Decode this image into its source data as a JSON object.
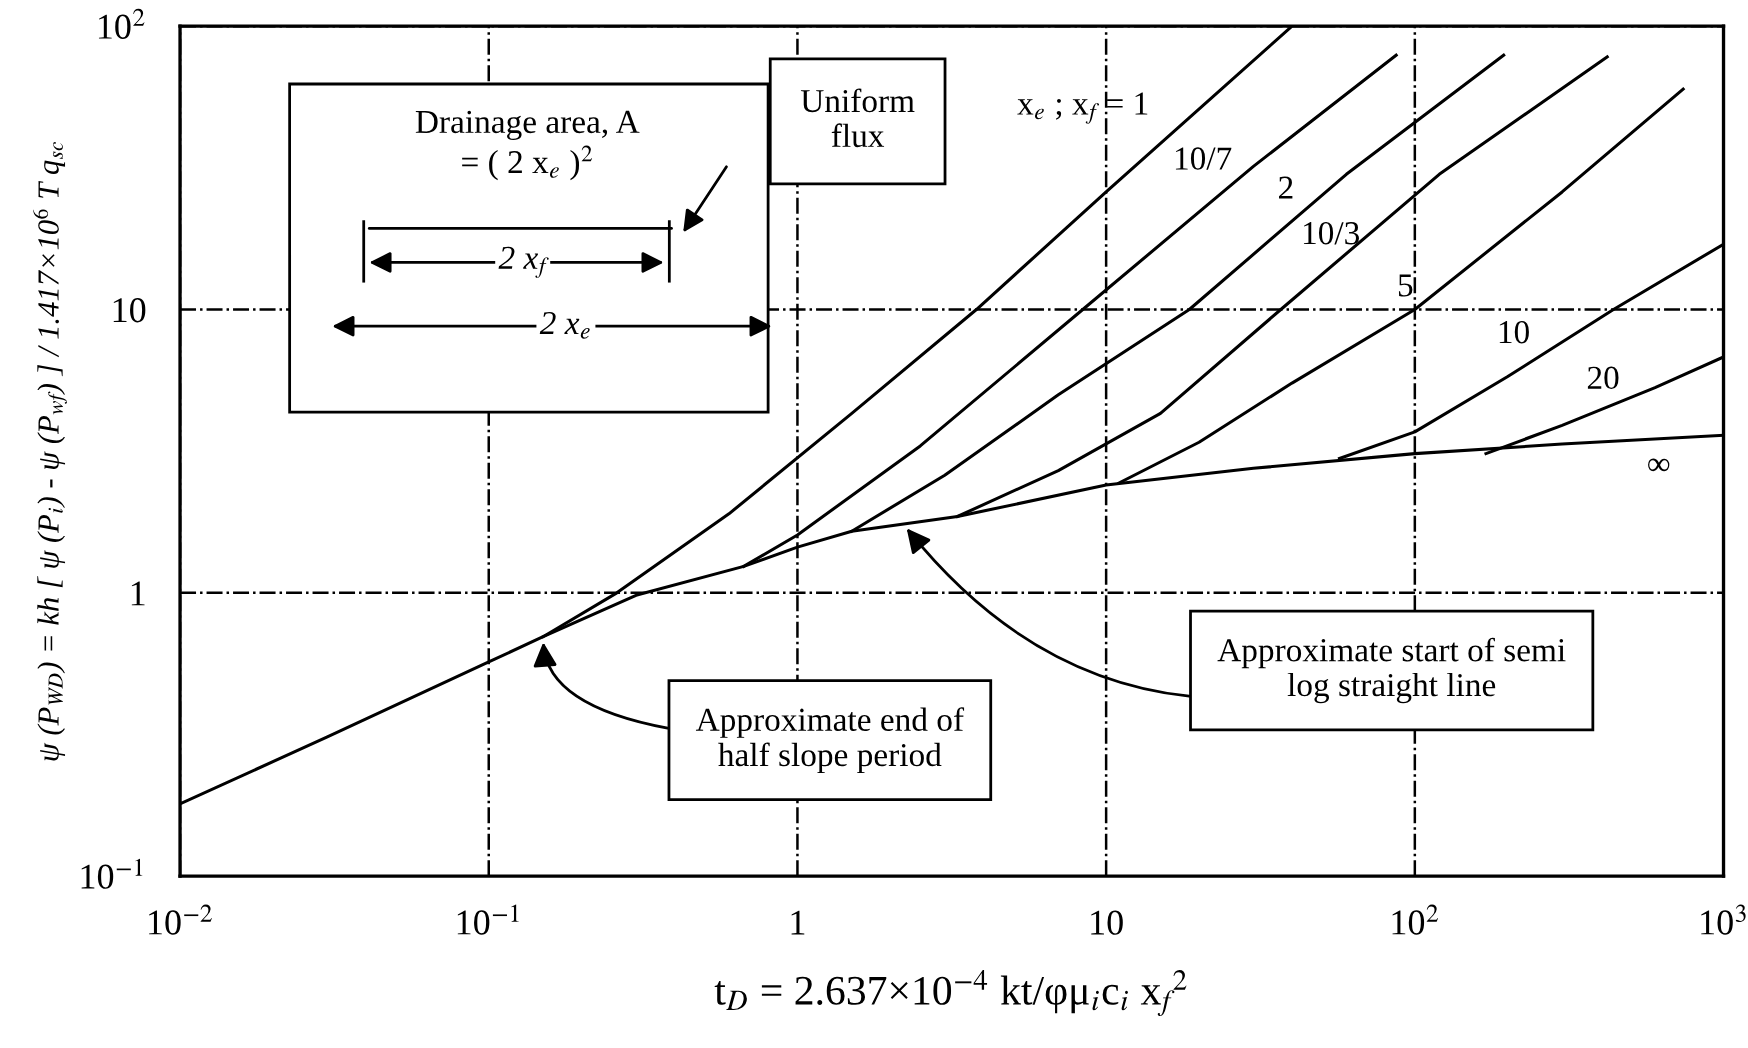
{
  "chart_data": {
    "type": "line",
    "xlabel": "t$_{D}$ = 2.637×10$^{−4}$ kt/φμ$_{i}$c$_{i}$ x$_{f}$$^{2}$",
    "ylabel": "ψ (P$_{WD}$) = kh [ ψ (P$_{i}$) - ψ (P$_{wf}$) ] / 1.417×10$^{6}$ T q$_{sc}$",
    "log": "xy",
    "grid": true,
    "line_style": "solid",
    "marker": "none",
    "xlim": [
      0.01,
      1000
    ],
    "ylim": [
      0.1,
      100
    ],
    "xticks": [
      {
        "value": 0.01,
        "label": "10$^{−2}$"
      },
      {
        "value": 0.1,
        "label": "10$^{−1}$"
      },
      1,
      10,
      {
        "value": 100,
        "label": "10$^{2}$"
      },
      {
        "value": 1000,
        "label": "10$^{3}$"
      }
    ],
    "yticks": [
      {
        "value": 0.1,
        "label": "10$^{−1}$"
      },
      1,
      10,
      {
        "value": 100,
        "label": "10$^{2}$"
      }
    ],
    "series": [
      {
        "name": "∞",
        "color": "#000000",
        "x": [
          0.01,
          0.03,
          0.1,
          0.15,
          0.3,
          0.67,
          1,
          1.5,
          3.3,
          10,
          30,
          100,
          300,
          1000
        ],
        "values": [
          0.18,
          0.31,
          0.57,
          0.7,
          0.98,
          1.24,
          1.45,
          1.65,
          1.86,
          2.4,
          2.75,
          3.1,
          3.35,
          3.6
        ]
      },
      {
        "name": "x$_{e}$ ; x$_{f}$ = 1",
        "color": "#000000",
        "x": [
          0.15,
          0.26,
          0.6,
          1.5,
          3.8,
          10,
          40
        ],
        "values": [
          0.7,
          1,
          1.9,
          4.3,
          10,
          26,
          100
        ]
      },
      {
        "name": "10/7",
        "color": "#000000",
        "x": [
          0.67,
          1,
          2.5,
          8.4,
          30,
          87
        ],
        "values": [
          1.24,
          1.6,
          3.3,
          10,
          32,
          79
        ]
      },
      {
        "name": "2",
        "color": "#000000",
        "x": [
          1.5,
          3,
          7,
          18.6,
          60,
          194
        ],
        "values": [
          1.65,
          2.6,
          5,
          10,
          30,
          79
        ]
      },
      {
        "name": "10/3",
        "color": "#000000",
        "x": [
          3.3,
          7,
          15,
          36.8,
          120,
          420
        ],
        "values": [
          1.86,
          2.7,
          4.3,
          10,
          30,
          78
        ]
      },
      {
        "name": "5",
        "color": "#000000",
        "x": [
          11,
          20,
          40,
          100,
          300,
          740
        ],
        "values": [
          2.44,
          3.4,
          5.5,
          10,
          26,
          60
        ]
      },
      {
        "name": "10",
        "color": "#000000",
        "x": [
          57,
          100,
          200,
          440,
          1000
        ],
        "values": [
          2.98,
          3.7,
          5.8,
          10,
          17
        ]
      },
      {
        "name": "20",
        "color": "#000000",
        "x": [
          170,
          300,
          600,
          1000
        ],
        "values": [
          3.1,
          3.9,
          5.3,
          6.8
        ]
      }
    ],
    "annotations": [
      "Drainage area, A\n= ( 2 x$_{e}$ )$^{2}$",
      "2 x$_{f}$",
      "2 x$_{e}$",
      "Uniform\nflux",
      {
        "text": "Approximate end of\nhalf slope period",
        "x": 0.15,
        "y": 0.7
      },
      {
        "text": "Approximate start of semi\nlog straight line",
        "x": 2.2,
        "y": 1.75
      }
    ]
  }
}
